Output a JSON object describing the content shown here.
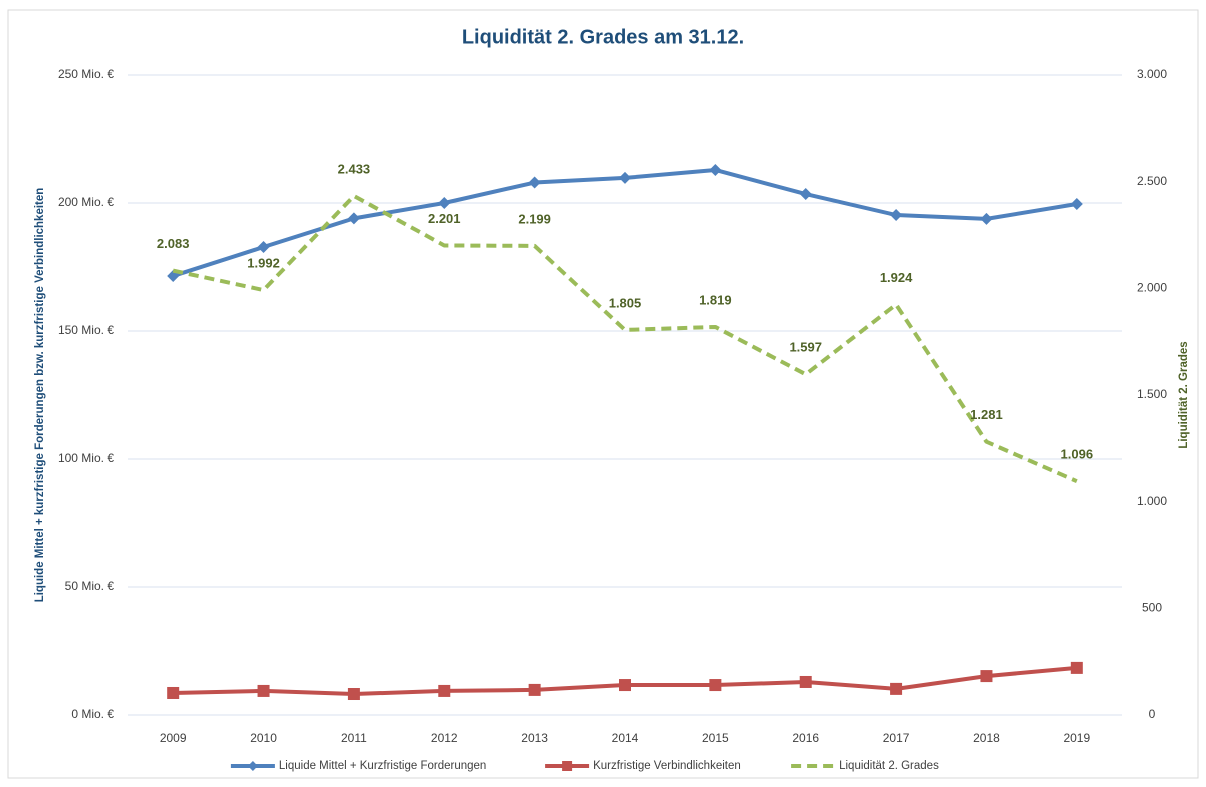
{
  "chart_data": {
    "type": "line",
    "title": "Liquidität 2. Grades am 31.12.",
    "y_label": "Liquide Mittel + kurzfristige Forderungen bzw. kurzfristige Verbindlichkeiten",
    "y2_label": "Liquidität 2. Grades",
    "categories": [
      "2009",
      "2010",
      "2011",
      "2012",
      "2013",
      "2014",
      "2015",
      "2016",
      "2017",
      "2018",
      "2019"
    ],
    "ylim": [
      0,
      250
    ],
    "yticks": [
      {
        "value": 0,
        "label": "0 Mio. €"
      },
      {
        "value": 50,
        "label": "50 Mio. €"
      },
      {
        "value": 100,
        "label": "100 Mio. €"
      },
      {
        "value": 150,
        "label": "150 Mio. €"
      },
      {
        "value": 200,
        "label": "200 Mio. €"
      },
      {
        "value": 250,
        "label": "250 Mio. €"
      }
    ],
    "y2lim": [
      0,
      3000
    ],
    "y2ticks": [
      0,
      500,
      {
        "value": 1000,
        "label": "1.000"
      },
      {
        "value": 1500,
        "label": "1.500"
      },
      {
        "value": 2000,
        "label": "2.000"
      },
      {
        "value": 2500,
        "label": "2.500"
      },
      {
        "value": 3000,
        "label": "3.000"
      }
    ],
    "grid": true,
    "legend": "bottom",
    "series": [
      {
        "name": "Liquide Mittel + Kurzfristige Forderungen",
        "color": "#4f81bd",
        "marker": "diamond",
        "values": [
          171.5,
          182.8,
          194,
          200,
          208,
          209.8,
          212.9,
          203.5,
          195.3,
          193.8,
          199.6
        ]
      },
      {
        "name": "Kurzfristige Verbindlichkeiten",
        "color": "#c0504d",
        "marker": "square",
        "values": [
          8.6,
          9.4,
          8.2,
          9.4,
          9.8,
          11.7,
          11.7,
          12.9,
          10.2,
          15.2,
          18.4
        ]
      },
      {
        "name": "Liquidität 2. Grades",
        "color": "#9bbb59",
        "dashed": true,
        "axis": "y2",
        "values": [
          2083,
          1992,
          2433,
          2201,
          2199,
          1805,
          1819,
          1597,
          1924,
          1281,
          1096
        ],
        "value_labels": [
          "2.083",
          "1.992",
          "2.433",
          "2.201",
          "2.199",
          "1.805",
          "1.819",
          "1.597",
          "1.924",
          "1.281",
          "1.096"
        ]
      }
    ]
  }
}
